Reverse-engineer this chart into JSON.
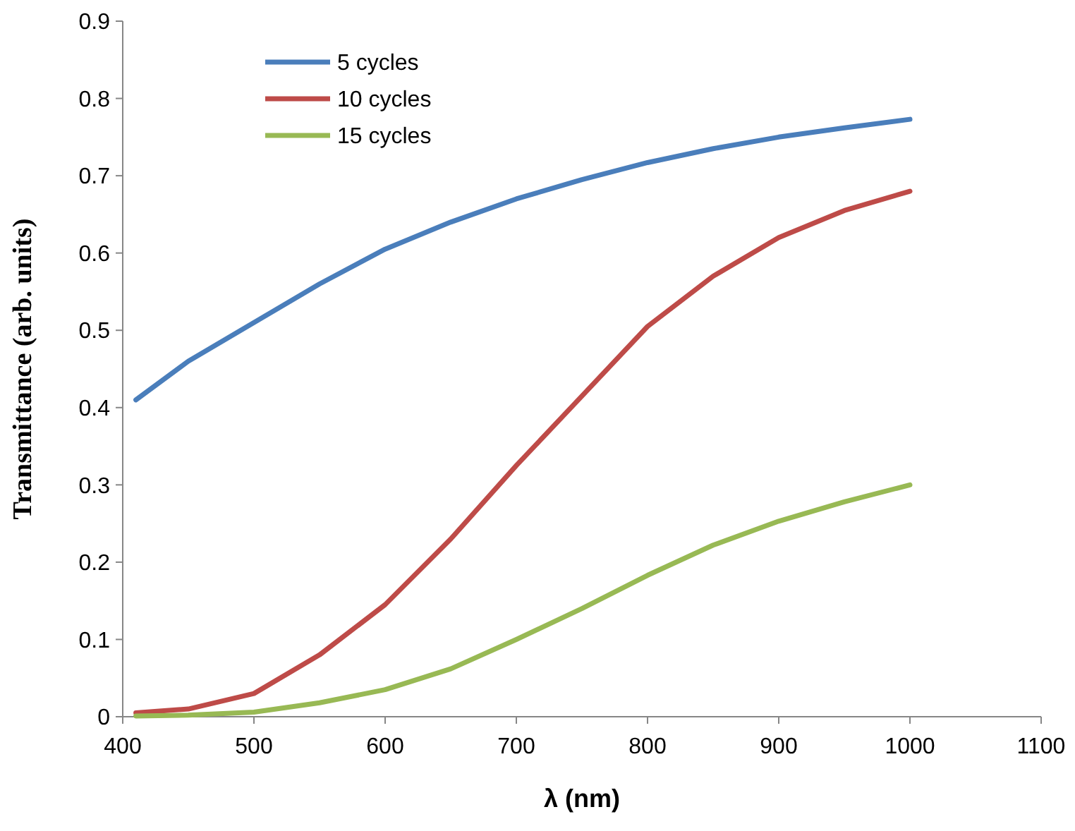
{
  "chart_data": {
    "type": "line",
    "xlabel": "λ (nm)",
    "ylabel": "Transmittance  (arb. units)",
    "xlim": [
      400,
      1100
    ],
    "xticks": [
      400,
      500,
      600,
      700,
      800,
      900,
      1000,
      1100
    ],
    "ylim": [
      0,
      0.9
    ],
    "yticks": [
      0,
      0.1,
      0.2,
      0.3,
      0.4,
      0.5,
      0.6,
      0.7,
      0.8,
      0.9
    ],
    "grid": false,
    "legend": "top left",
    "marker": "none",
    "line_style": "solid",
    "x": [
      410,
      450,
      500,
      550,
      600,
      650,
      700,
      750,
      800,
      850,
      900,
      950,
      1000
    ],
    "series": [
      {
        "name": "5 cycles",
        "color": "#4a7ebb",
        "values": [
          0.41,
          0.46,
          0.51,
          0.56,
          0.605,
          0.64,
          0.67,
          0.695,
          0.717,
          0.735,
          0.75,
          0.762,
          0.773
        ]
      },
      {
        "name": "10 cycles",
        "color": "#be4b48",
        "values": [
          0.005,
          0.01,
          0.03,
          0.08,
          0.145,
          0.23,
          0.325,
          0.415,
          0.505,
          0.57,
          0.62,
          0.655,
          0.68
        ]
      },
      {
        "name": "15 cycles",
        "color": "#98b954",
        "values": [
          0.001,
          0.002,
          0.006,
          0.018,
          0.035,
          0.062,
          0.1,
          0.14,
          0.183,
          0.222,
          0.253,
          0.278,
          0.3
        ]
      }
    ]
  }
}
